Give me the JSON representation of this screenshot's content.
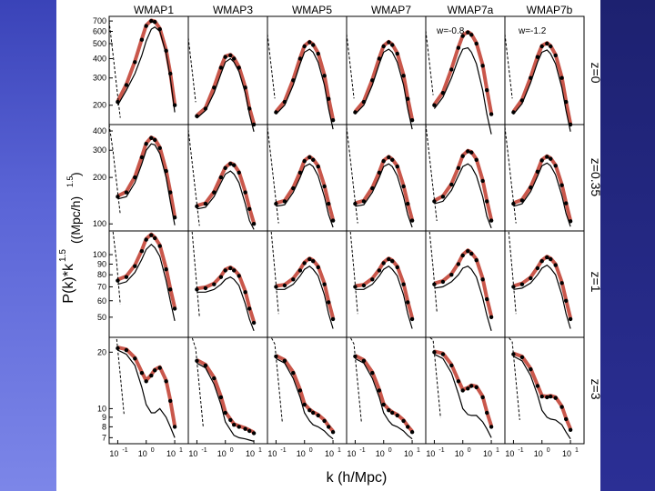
{
  "figure": {
    "column_titles": [
      "WMAP1",
      "WMAP3",
      "WMAP5",
      "WMAP7",
      "WMAP7a",
      "WMAP7b"
    ],
    "row_labels": [
      "z=0",
      "z=0.35",
      "z=1",
      "z=3"
    ],
    "annotations": {
      "col4": "w=-0.8",
      "col5": "w=-1.2"
    },
    "y_axis_label": "P(k)*k",
    "y_axis_exponent": "1.5",
    "y_axis_units": "((Mpc/h)",
    "y_axis_units_exponent": "1.5",
    "y_axis_units_close": ")",
    "x_axis_label": "k  (h/Mpc)",
    "x_tick_labels": [
      {
        "base": "10",
        "exp": "-1"
      },
      {
        "base": "10",
        "exp": "0"
      },
      {
        "base": "10",
        "exp": "1"
      }
    ],
    "row_y_ticks": [
      [
        "700",
        "600",
        "500",
        "400",
        "300",
        "200"
      ],
      [
        "400",
        "300",
        "200",
        "100"
      ],
      [
        "100",
        "90",
        "80",
        "70",
        "60",
        "50"
      ],
      [
        "20",
        "10",
        "9",
        "8",
        "7"
      ]
    ]
  },
  "colors": {
    "data_points": "#000000",
    "model_band": "#c0392b",
    "linear_curve": "#000000",
    "slide_left": "#4a53c4",
    "slide_right": "#23278a"
  },
  "chart_data": {
    "type": "line",
    "layout": "grid 4 rows x 6 columns",
    "xscale": "log",
    "yscale": "log",
    "x_range": [
      0.05,
      30
    ],
    "columns": [
      "WMAP1",
      "WMAP3",
      "WMAP5",
      "WMAP7",
      "WMAP7a",
      "WMAP7b"
    ],
    "rows": [
      "z=0",
      "z=0.35",
      "z=1",
      "z=3"
    ],
    "row_ylim": [
      [
        150,
        750
      ],
      [
        90,
        440
      ],
      [
        40,
        130
      ],
      [
        6.5,
        24
      ]
    ],
    "k": [
      0.1,
      0.2,
      0.4,
      0.7,
      1.0,
      1.5,
      2,
      3,
      5,
      7,
      10
    ],
    "series_kinds": [
      "simulation points",
      "fitted model (red band)",
      "linear theory (solid)",
      "halo term (dashed)"
    ],
    "panels": [
      [
        {
          "points": [
            210,
            270,
            380,
            530,
            650,
            700,
            690,
            620,
            450,
            320,
            200
          ],
          "linear": [
            200,
            250,
            320,
            420,
            520,
            620,
            640,
            600,
            430,
            300,
            180
          ],
          "dashed_start": 230
        },
        {
          "points": [
            170,
            190,
            260,
            350,
            410,
            420,
            400,
            350,
            260,
            190,
            150
          ],
          "linear": [
            165,
            185,
            240,
            320,
            380,
            400,
            380,
            330,
            240,
            175,
            135
          ],
          "dashed_start": 180
        },
        {
          "points": [
            180,
            210,
            290,
            400,
            480,
            510,
            490,
            430,
            310,
            220,
            160
          ],
          "linear": [
            175,
            200,
            270,
            370,
            440,
            460,
            440,
            380,
            270,
            190,
            140
          ],
          "dashed_start": 190
        },
        {
          "points": [
            180,
            210,
            290,
            400,
            480,
            510,
            490,
            430,
            310,
            220,
            160
          ],
          "linear": [
            175,
            200,
            270,
            370,
            440,
            460,
            440,
            380,
            270,
            190,
            140
          ],
          "dashed_start": 190
        },
        {
          "points": [
            200,
            240,
            340,
            470,
            560,
            590,
            570,
            500,
            360,
            250,
            175
          ],
          "linear": [
            190,
            225,
            300,
            400,
            460,
            470,
            440,
            370,
            250,
            175,
            130
          ],
          "dashed_start": 200
        },
        {
          "points": [
            180,
            215,
            300,
            410,
            480,
            500,
            480,
            420,
            300,
            210,
            150
          ],
          "linear": [
            175,
            205,
            280,
            380,
            440,
            455,
            430,
            370,
            260,
            185,
            135
          ],
          "dashed_start": 190
        }
      ],
      [
        {
          "points": [
            150,
            160,
            200,
            270,
            330,
            360,
            350,
            310,
            220,
            160,
            110
          ],
          "linear": [
            145,
            150,
            185,
            245,
            300,
            330,
            325,
            285,
            200,
            140,
            98
          ],
          "dashed_start": 160
        },
        {
          "points": [
            130,
            135,
            160,
            200,
            230,
            245,
            240,
            215,
            160,
            125,
            100
          ],
          "linear": [
            125,
            128,
            150,
            185,
            210,
            220,
            210,
            185,
            135,
            105,
            92
          ],
          "dashed_start": 135
        },
        {
          "points": [
            135,
            140,
            170,
            215,
            255,
            270,
            260,
            235,
            175,
            135,
            105
          ],
          "linear": [
            130,
            133,
            160,
            200,
            235,
            245,
            235,
            205,
            150,
            115,
            95
          ],
          "dashed_start": 140
        },
        {
          "points": [
            135,
            140,
            170,
            215,
            255,
            270,
            260,
            235,
            175,
            135,
            105
          ],
          "linear": [
            130,
            133,
            160,
            200,
            235,
            245,
            235,
            205,
            150,
            115,
            95
          ],
          "dashed_start": 140
        },
        {
          "points": [
            140,
            150,
            180,
            230,
            275,
            295,
            290,
            260,
            190,
            140,
            105
          ],
          "linear": [
            135,
            140,
            165,
            205,
            235,
            245,
            235,
            205,
            150,
            112,
            94
          ],
          "dashed_start": 145
        },
        {
          "points": [
            135,
            142,
            172,
            218,
            258,
            272,
            264,
            238,
            178,
            136,
            104
          ],
          "linear": [
            130,
            135,
            162,
            204,
            238,
            248,
            238,
            208,
            153,
            117,
            96
          ],
          "dashed_start": 140
        }
      ],
      [
        {
          "points": [
            75,
            78,
            88,
            104,
            118,
            124,
            120,
            110,
            85,
            68,
            55
          ],
          "linear": [
            72,
            74,
            82,
            95,
            106,
            112,
            108,
            98,
            75,
            60,
            48
          ],
          "dashed_start": 80
        },
        {
          "points": [
            68,
            69,
            72,
            78,
            84,
            86,
            84,
            79,
            66,
            55,
            47
          ],
          "linear": [
            66,
            66,
            68,
            72,
            76,
            78,
            76,
            71,
            58,
            49,
            43
          ],
          "dashed_start": 70
        },
        {
          "points": [
            70,
            71,
            76,
            84,
            91,
            95,
            93,
            87,
            72,
            59,
            49
          ],
          "linear": [
            68,
            68,
            72,
            79,
            85,
            88,
            85,
            79,
            64,
            52,
            44
          ],
          "dashed_start": 72
        },
        {
          "points": [
            70,
            71,
            76,
            84,
            91,
            95,
            93,
            87,
            72,
            59,
            49
          ],
          "linear": [
            68,
            68,
            72,
            79,
            85,
            88,
            85,
            79,
            64,
            52,
            44
          ],
          "dashed_start": 72
        },
        {
          "points": [
            72,
            74,
            80,
            90,
            99,
            104,
            101,
            94,
            76,
            61,
            50
          ],
          "linear": [
            69,
            70,
            74,
            80,
            86,
            88,
            85,
            78,
            62,
            51,
            43
          ],
          "dashed_start": 74
        },
        {
          "points": [
            70,
            72,
            77,
            86,
            93,
            97,
            95,
            89,
            73,
            60,
            49
          ],
          "linear": [
            68,
            69,
            73,
            80,
            86,
            89,
            86,
            80,
            64,
            52,
            44
          ],
          "dashed_start": 72
        }
      ],
      [
        {
          "points": [
            21,
            20.5,
            18.5,
            15.5,
            14,
            15,
            16,
            16.5,
            14,
            11,
            8
          ],
          "linear": [
            20.5,
            19.5,
            17,
            13,
            10.5,
            9.5,
            9.5,
            10,
            9,
            8,
            7
          ],
          "dashed_start": 21
        },
        {
          "points": [
            18,
            17,
            14.5,
            11.5,
            9.5,
            8.7,
            8.2,
            8.0,
            7.8,
            7.6,
            7.4
          ],
          "linear": [
            17.5,
            16.5,
            13.5,
            10.5,
            8.5,
            7.7,
            7.2,
            7.0,
            6.9,
            6.8,
            6.7
          ],
          "dashed_start": 18
        },
        {
          "points": [
            19,
            18,
            15.5,
            12.5,
            10.5,
            9.8,
            9.5,
            9.2,
            8.6,
            8.0,
            7.5
          ],
          "linear": [
            18.5,
            17.5,
            14.5,
            11.5,
            9.5,
            8.6,
            8.2,
            8.0,
            7.6,
            7.2,
            6.9
          ],
          "dashed_start": 19
        },
        {
          "points": [
            19,
            18,
            15.5,
            12.5,
            10.5,
            9.8,
            9.5,
            9.2,
            8.6,
            8.0,
            7.5
          ],
          "linear": [
            18.5,
            17.5,
            14.5,
            11.5,
            9.5,
            8.6,
            8.2,
            8.0,
            7.6,
            7.2,
            6.9
          ],
          "dashed_start": 19
        },
        {
          "points": [
            20,
            19.5,
            17,
            14,
            12.5,
            12.8,
            13.2,
            13.0,
            11.5,
            9.5,
            8.0
          ],
          "linear": [
            19.5,
            18.5,
            15.5,
            12,
            10,
            9.3,
            9.2,
            9.2,
            8.5,
            7.8,
            7.0
          ],
          "dashed_start": 20
        },
        {
          "points": [
            19.5,
            18.8,
            16.2,
            13.2,
            11.6,
            11.5,
            11.6,
            11.4,
            10.2,
            8.8,
            7.7
          ],
          "linear": [
            19,
            18,
            15,
            11.8,
            9.8,
            9.0,
            8.8,
            8.7,
            8.2,
            7.5,
            6.9
          ],
          "dashed_start": 19.5
        }
      ]
    ]
  }
}
